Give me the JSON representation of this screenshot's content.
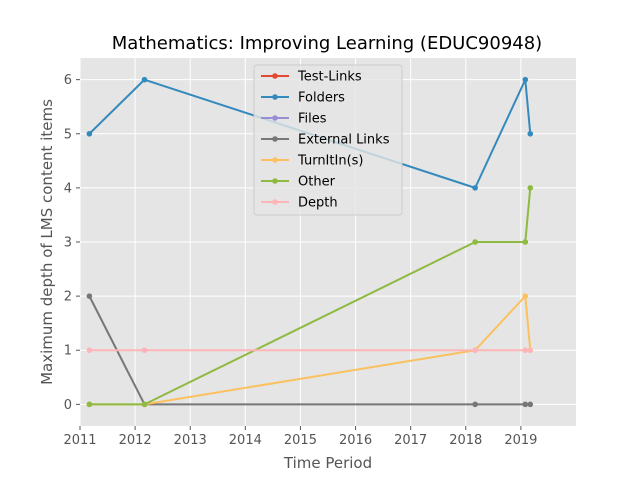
{
  "chart_data": {
    "type": "line",
    "title": "Mathematics: Improving Learning (EDUC90948)",
    "xlabel": "Time Period",
    "ylabel": "Maximum depth of LMS content items",
    "xlim": [
      2011,
      2020
    ],
    "ylim": [
      -0.4,
      6.4
    ],
    "xticks": [
      2011,
      2012,
      2013,
      2014,
      2015,
      2016,
      2017,
      2018,
      2019
    ],
    "yticks": [
      0,
      1,
      2,
      3,
      4,
      5,
      6
    ],
    "grid": true,
    "legend_placement": "top-center",
    "series": [
      {
        "name": "Test-Links",
        "color": "#E24A33",
        "x": [],
        "y": []
      },
      {
        "name": "Folders",
        "color": "#348ABD",
        "x": [
          2011.17,
          2012.17,
          2018.17,
          2019.08,
          2019.17
        ],
        "y": [
          5,
          6,
          4,
          6,
          5
        ]
      },
      {
        "name": "Files",
        "color": "#988ED5",
        "x": [],
        "y": []
      },
      {
        "name": "External Links",
        "color": "#777777",
        "x": [
          2011.17,
          2012.17,
          2018.17,
          2019.08,
          2019.17
        ],
        "y": [
          2,
          0,
          0,
          0,
          0
        ]
      },
      {
        "name": "TurnItIn(s)",
        "color": "#FBC15E",
        "x": [
          2011.17,
          2012.17,
          2018.17,
          2019.08,
          2019.17
        ],
        "y": [
          0,
          0,
          1,
          2,
          1
        ]
      },
      {
        "name": "Other",
        "color": "#8EBA42",
        "x": [
          2011.17,
          2012.17,
          2018.17,
          2019.08,
          2019.17
        ],
        "y": [
          0,
          0,
          3,
          3,
          4
        ]
      },
      {
        "name": "Depth",
        "color": "#FFB5B8",
        "x": [
          2011.17,
          2012.17,
          2018.17,
          2019.08,
          2019.17
        ],
        "y": [
          1,
          1,
          1,
          1,
          1
        ]
      }
    ]
  }
}
